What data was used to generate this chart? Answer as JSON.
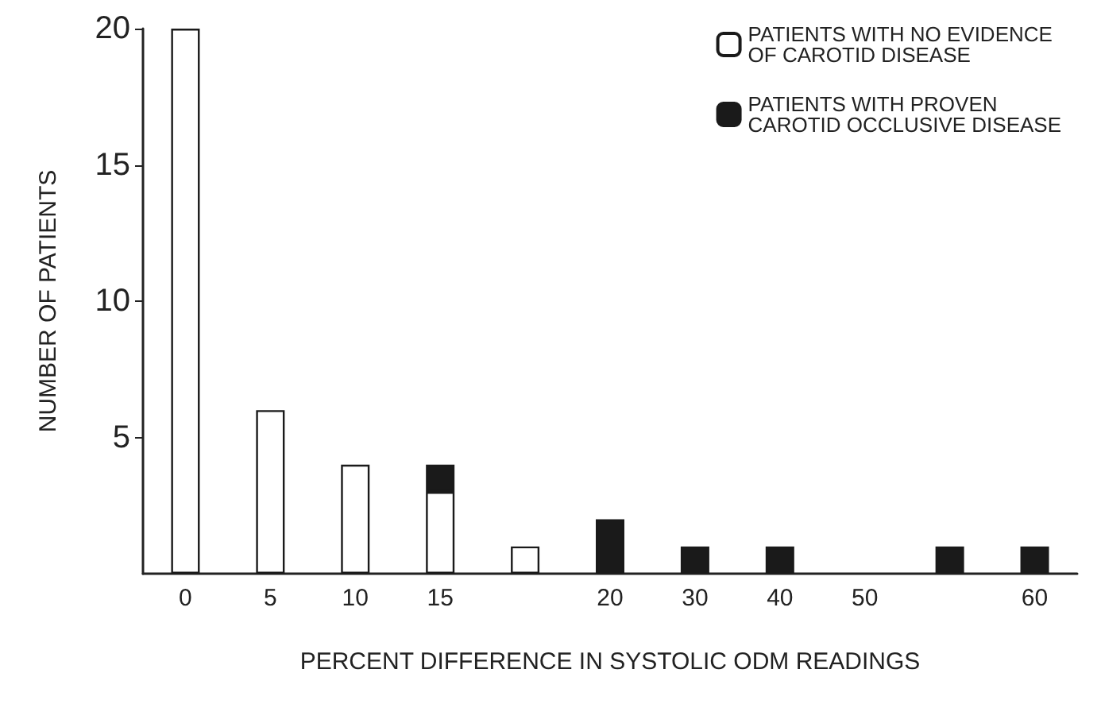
{
  "chart_data": {
    "type": "bar",
    "stacked": true,
    "xlabel": "PERCENT DIFFERENCE IN SYSTOLIC ODM READINGS",
    "ylabel": "NUMBER OF PATIENTS",
    "categories": [
      "0",
      "5",
      "10",
      "15",
      null,
      "20",
      "30",
      "40",
      "50",
      null,
      "60"
    ],
    "series": [
      {
        "name": "PATIENTS WITH NO EVIDENCE OF CAROTID DISEASE",
        "color": "#ffffff",
        "values": [
          20,
          6,
          4,
          3,
          1,
          null,
          null,
          null,
          null,
          null,
          null
        ]
      },
      {
        "name": "PATIENTS WITH PROVEN CAROTID OCCLUSIVE DISEASE",
        "color": "#1a1a1a",
        "values": [
          null,
          null,
          null,
          1,
          null,
          2,
          1,
          1,
          null,
          1,
          1
        ]
      }
    ],
    "ylim": [
      0,
      20
    ],
    "yticks": [
      5,
      10,
      15,
      20
    ],
    "grid": false,
    "legend": "top right"
  }
}
